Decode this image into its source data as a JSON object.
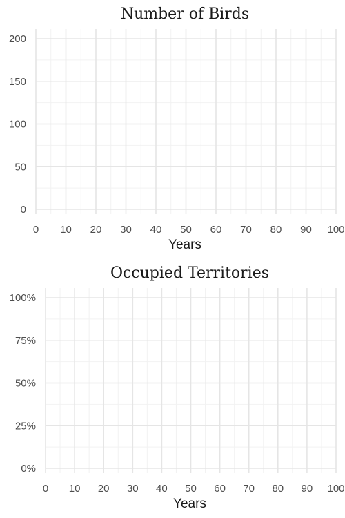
{
  "chart_data": [
    {
      "type": "line",
      "title": "Number of Birds",
      "xlabel": "Years",
      "ylabel": "",
      "xlim": [
        0,
        100
      ],
      "ylim": [
        0,
        200
      ],
      "x_ticks": [
        0,
        10,
        20,
        30,
        40,
        50,
        60,
        70,
        80,
        90,
        100
      ],
      "y_ticks": [
        0,
        50,
        100,
        150,
        200
      ],
      "y_tick_labels": [
        "0",
        "50",
        "100",
        "150",
        "200"
      ],
      "grid": true,
      "series": []
    },
    {
      "type": "line",
      "title": "Occupied Territories",
      "xlabel": "Years",
      "ylabel": "",
      "xlim": [
        0,
        100
      ],
      "ylim": [
        0,
        1
      ],
      "x_ticks": [
        0,
        10,
        20,
        30,
        40,
        50,
        60,
        70,
        80,
        90,
        100
      ],
      "y_ticks": [
        0,
        0.25,
        0.5,
        0.75,
        1
      ],
      "y_tick_labels": [
        "0%",
        "25%",
        "50%",
        "75%",
        "100%"
      ],
      "grid": true,
      "series": []
    }
  ]
}
